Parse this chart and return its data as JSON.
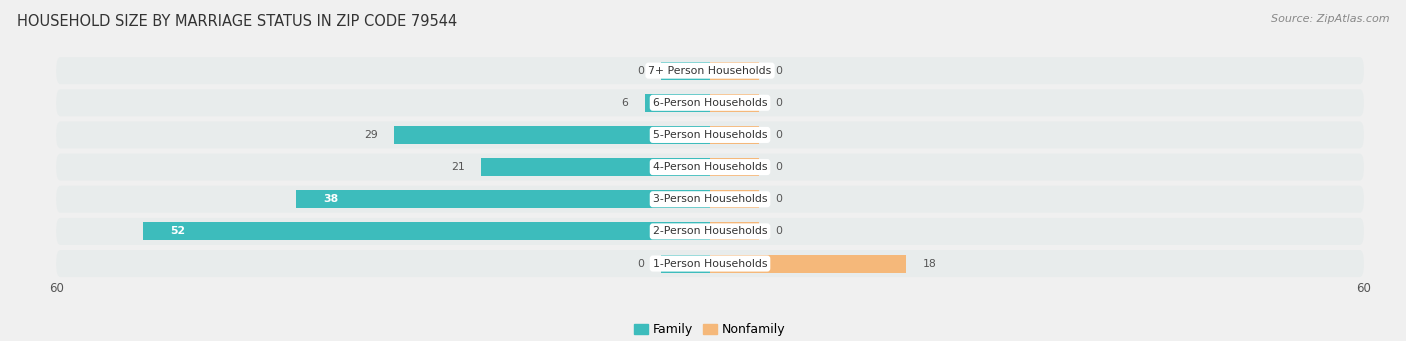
{
  "title": "HOUSEHOLD SIZE BY MARRIAGE STATUS IN ZIP CODE 79544",
  "source": "Source: ZipAtlas.com",
  "categories": [
    "1-Person Households",
    "2-Person Households",
    "3-Person Households",
    "4-Person Households",
    "5-Person Households",
    "6-Person Households",
    "7+ Person Households"
  ],
  "family_values": [
    0,
    52,
    38,
    21,
    29,
    6,
    0
  ],
  "nonfamily_values": [
    18,
    0,
    0,
    0,
    0,
    0,
    0
  ],
  "family_color": "#3dbcbc",
  "nonfamily_color": "#f5b87a",
  "xlim_left": -60,
  "xlim_right": 60,
  "bg_color": "#f0f0f0",
  "row_bg_color": "#e4e4e4",
  "row_bg_color2": "#e8ecec",
  "title_fontsize": 10.5,
  "source_fontsize": 8,
  "tick_fontsize": 8.5,
  "bar_height": 0.56,
  "label_fontsize": 7.8,
  "value_fontsize": 7.8,
  "stub_size": 4.5
}
